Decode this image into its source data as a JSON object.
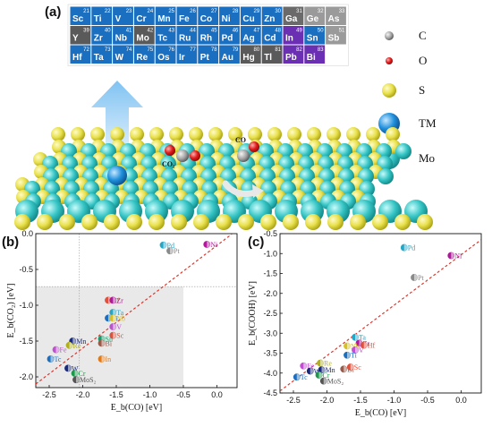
{
  "panel_a": {
    "label": "(a)",
    "legend": [
      {
        "label": "C",
        "color": "#9e9e9e",
        "size": "small"
      },
      {
        "label": "O",
        "color": "#e01b1b",
        "size": "small"
      },
      {
        "label": "S",
        "color": "#e2dc4a",
        "size": "medium"
      },
      {
        "label": "TM",
        "color": "#1f8fd8",
        "size": "large"
      },
      {
        "label": "Mo",
        "color": "#33c2c2",
        "size": "large"
      }
    ],
    "periodic_table": [
      [
        {
          "sym": "Sc",
          "num": "21",
          "color": "#1a6fc0"
        },
        {
          "sym": "Ti",
          "num": "22",
          "color": "#1a6fc0"
        },
        {
          "sym": "V",
          "num": "23",
          "color": "#1a6fc0"
        },
        {
          "sym": "Cr",
          "num": "24",
          "color": "#1a6fc0"
        },
        {
          "sym": "Mn",
          "num": "25",
          "color": "#1a6fc0"
        },
        {
          "sym": "Fe",
          "num": "26",
          "color": "#1a6fc0"
        },
        {
          "sym": "Co",
          "num": "27",
          "color": "#1a6fc0"
        },
        {
          "sym": "Ni",
          "num": "28",
          "color": "#1a6fc0"
        },
        {
          "sym": "Cu",
          "num": "29",
          "color": "#1a6fc0"
        },
        {
          "sym": "Zn",
          "num": "30",
          "color": "#1a6fc0"
        },
        {
          "sym": "Ga",
          "num": "31",
          "color": "#6a6a6a"
        },
        {
          "sym": "Ge",
          "num": "32",
          "color": "#9a9a9a"
        },
        {
          "sym": "As",
          "num": "33",
          "color": "#9a9a9a"
        }
      ],
      [
        {
          "sym": "Y",
          "num": "39",
          "color": "#5a5a5a"
        },
        {
          "sym": "Zr",
          "num": "40",
          "color": "#1a6fc0"
        },
        {
          "sym": "Nb",
          "num": "41",
          "color": "#1a6fc0"
        },
        {
          "sym": "Mo",
          "num": "42",
          "color": "#5a5a5a"
        },
        {
          "sym": "Tc",
          "num": "43",
          "color": "#1a6fc0"
        },
        {
          "sym": "Ru",
          "num": "44",
          "color": "#1a6fc0"
        },
        {
          "sym": "Rh",
          "num": "45",
          "color": "#1a6fc0"
        },
        {
          "sym": "Pd",
          "num": "46",
          "color": "#1a6fc0"
        },
        {
          "sym": "Ag",
          "num": "47",
          "color": "#1a6fc0"
        },
        {
          "sym": "Cd",
          "num": "48",
          "color": "#1a6fc0"
        },
        {
          "sym": "In",
          "num": "49",
          "color": "#6a2fb3"
        },
        {
          "sym": "Sn",
          "num": "50",
          "color": "#1a6fc0"
        },
        {
          "sym": "Sb",
          "num": "51",
          "color": "#9a9a9a"
        }
      ],
      [
        {
          "sym": "Hf",
          "num": "72",
          "color": "#1a6fc0"
        },
        {
          "sym": "Ta",
          "num": "73",
          "color": "#1a6fc0"
        },
        {
          "sym": "W",
          "num": "74",
          "color": "#1a6fc0"
        },
        {
          "sym": "Re",
          "num": "75",
          "color": "#1a6fc0"
        },
        {
          "sym": "Os",
          "num": "76",
          "color": "#1a6fc0"
        },
        {
          "sym": "Ir",
          "num": "77",
          "color": "#1a6fc0"
        },
        {
          "sym": "Pt",
          "num": "78",
          "color": "#1a6fc0"
        },
        {
          "sym": "Au",
          "num": "79",
          "color": "#1a6fc0"
        },
        {
          "sym": "Hg",
          "num": "80",
          "color": "#5a5a5a"
        },
        {
          "sym": "Tl",
          "num": "81",
          "color": "#5a5a5a"
        },
        {
          "sym": "Pb",
          "num": "82",
          "color": "#6a2fb3"
        },
        {
          "sym": "Bi",
          "num": "83",
          "color": "#6a2fb3"
        }
      ]
    ],
    "scene_labels": {
      "co2": "CO₂",
      "co": "CO"
    }
  },
  "chart_data": [
    {
      "panel_label": "(b)",
      "type": "scatter",
      "xlabel": "E_b(CO) [eV]",
      "ylabel": "E_b(CO₂) [eV]",
      "xlim": [
        -2.7,
        0.3
      ],
      "ylim": [
        -2.15,
        0.0
      ],
      "xticks": [
        -2.5,
        -2.0,
        -1.5,
        -1.0,
        -0.5,
        0.0
      ],
      "yticks": [
        0.0,
        -0.5,
        -1.0,
        -1.5,
        -2.0
      ],
      "xtick_labels": [
        "-2.5",
        "-2.0",
        "-1.5",
        "-1.0",
        "-0.5",
        "0.0"
      ],
      "ytick_labels": [
        "0.0",
        "-0.5",
        "-1.0",
        "-1.5",
        "-2.0"
      ],
      "shaded_region": {
        "x": [
          -2.7,
          -0.5
        ],
        "y": [
          -2.15,
          -0.74
        ]
      },
      "guide_lines": {
        "x": -2.05,
        "y": -0.74
      },
      "fit_line": [
        [
          -2.7,
          -2.1
        ],
        [
          0.3,
          0.05
        ]
      ],
      "points": [
        {
          "label": "Ni",
          "x": -0.15,
          "y": -0.15,
          "color": "#b0179c"
        },
        {
          "label": "Pd",
          "x": -0.8,
          "y": -0.16,
          "color": "#22a7c7"
        },
        {
          "label": "Pt",
          "x": -0.7,
          "y": -0.24,
          "color": "#8a8a8a"
        },
        {
          "label": "Hf",
          "x": -1.62,
          "y": -0.93,
          "color": "#e0503a"
        },
        {
          "label": "Zr",
          "x": -1.55,
          "y": -0.93,
          "color": "#b0179c"
        },
        {
          "label": "Ta",
          "x": -1.55,
          "y": -1.1,
          "color": "#22a7c7"
        },
        {
          "label": "Ti",
          "x": -1.62,
          "y": -1.18,
          "color": "#1a6fc0"
        },
        {
          "label": "Nb",
          "x": -1.55,
          "y": -1.18,
          "color": "#d8c020"
        },
        {
          "label": "V",
          "x": -1.55,
          "y": -1.3,
          "color": "#c050d0"
        },
        {
          "label": "Sc",
          "x": -1.55,
          "y": -1.42,
          "color": "#e0503a"
        },
        {
          "label": "Sn",
          "x": -1.72,
          "y": -1.47,
          "color": "#1a9a6a"
        },
        {
          "label": "Bi",
          "x": -1.72,
          "y": -1.53,
          "color": "#9a5a4a"
        },
        {
          "label": "Mn",
          "x": -2.15,
          "y": -1.5,
          "color": "#1a2a7a"
        },
        {
          "label": "Re",
          "x": -2.2,
          "y": -1.56,
          "color": "#b0b020"
        },
        {
          "label": "Fe",
          "x": -2.4,
          "y": -1.62,
          "color": "#c050d0"
        },
        {
          "label": "Tc",
          "x": -2.48,
          "y": -1.75,
          "color": "#1a6fc0"
        },
        {
          "label": "In",
          "x": -1.72,
          "y": -1.75,
          "color": "#e07a1a"
        },
        {
          "label": "W",
          "x": -2.22,
          "y": -1.88,
          "color": "#1a2a7a"
        },
        {
          "label": "Cr",
          "x": -2.12,
          "y": -1.95,
          "color": "#1a9a4a"
        },
        {
          "label": "MoS₂",
          "x": -2.1,
          "y": -2.04,
          "color": "#555555"
        }
      ]
    },
    {
      "panel_label": "(c)",
      "type": "scatter",
      "xlabel": "E_b(CO) [eV]",
      "ylabel": "E_b(COOH) [eV]",
      "xlim": [
        -2.7,
        0.3
      ],
      "ylim": [
        -4.5,
        -0.5
      ],
      "xticks": [
        -2.5,
        -2.0,
        -1.5,
        -1.0,
        -0.5,
        0.0
      ],
      "yticks": [
        -0.5,
        -1.0,
        -1.5,
        -2.0,
        -2.5,
        -3.0,
        -3.5,
        -4.0,
        -4.5
      ],
      "xtick_labels": [
        "-2.5",
        "-2.0",
        "-1.5",
        "-1.0",
        "-0.5",
        "0.0"
      ],
      "ytick_labels": [
        "-0.5",
        "-1.0",
        "-1.5",
        "-2.0",
        "-2.5",
        "-3.0",
        "-3.5",
        "-4.0",
        "-4.5"
      ],
      "fit_line": [
        [
          -2.7,
          -4.45
        ],
        [
          0.3,
          -0.65
        ]
      ],
      "points": [
        {
          "label": "Pd",
          "x": -0.85,
          "y": -0.85,
          "color": "#22a7c7"
        },
        {
          "label": "Ni",
          "x": -0.15,
          "y": -1.05,
          "color": "#b0179c"
        },
        {
          "label": "Pt",
          "x": -0.7,
          "y": -1.6,
          "color": "#8a8a8a"
        },
        {
          "label": "Ta",
          "x": -1.58,
          "y": -3.1,
          "color": "#22a7c7"
        },
        {
          "label": "Zr",
          "x": -1.52,
          "y": -3.25,
          "color": "#b0179c"
        },
        {
          "label": "Hf",
          "x": -1.45,
          "y": -3.3,
          "color": "#e0503a"
        },
        {
          "label": "Nb",
          "x": -1.7,
          "y": -3.32,
          "color": "#d8c020"
        },
        {
          "label": "V",
          "x": -1.58,
          "y": -3.42,
          "color": "#c050d0"
        },
        {
          "label": "Ti",
          "x": -1.7,
          "y": -3.55,
          "color": "#1a6fc0"
        },
        {
          "label": "Re",
          "x": -2.1,
          "y": -3.75,
          "color": "#b0b020"
        },
        {
          "label": "Fe",
          "x": -2.35,
          "y": -3.82,
          "color": "#c050d0"
        },
        {
          "label": "Bi",
          "x": -1.75,
          "y": -3.9,
          "color": "#9a5a4a"
        },
        {
          "label": "Sc",
          "x": -1.65,
          "y": -3.85,
          "color": "#e0503a"
        },
        {
          "label": "W",
          "x": -2.25,
          "y": -3.95,
          "color": "#1a2a7a"
        },
        {
          "label": "Mn",
          "x": -2.08,
          "y": -3.92,
          "color": "#1a2a7a"
        },
        {
          "label": "Cr",
          "x": -2.12,
          "y": -4.05,
          "color": "#1a9a4a"
        },
        {
          "label": "Tc",
          "x": -2.45,
          "y": -4.1,
          "color": "#1a6fc0"
        },
        {
          "label": "MoS₂",
          "x": -2.05,
          "y": -4.2,
          "color": "#555555"
        }
      ]
    }
  ]
}
